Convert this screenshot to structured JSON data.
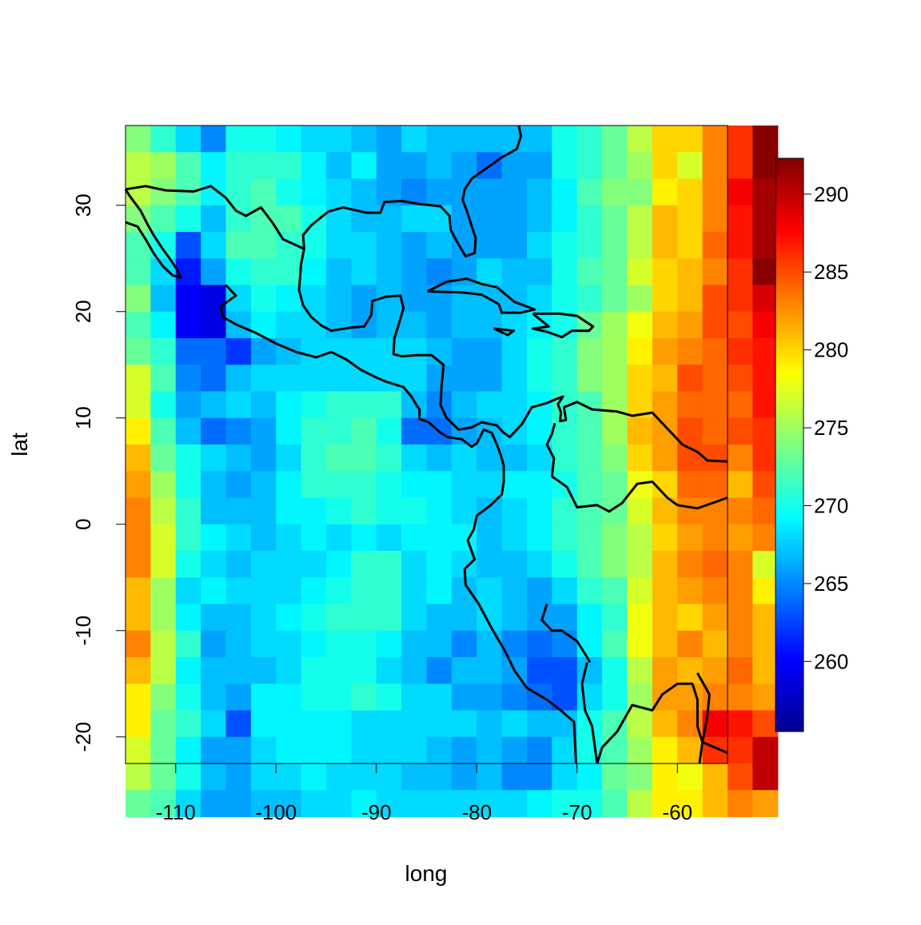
{
  "chart_data": {
    "type": "heatmap",
    "title": "",
    "xlabel": "long",
    "ylabel": "lat",
    "xlim": [
      -115,
      -55
    ],
    "ylim": [
      -22.5,
      37.5
    ],
    "x_ticks": [
      "-110",
      "-100",
      "-90",
      "-80",
      "-70",
      "-60"
    ],
    "y_ticks": [
      "-20",
      "-10",
      "0",
      "10",
      "20",
      "30"
    ],
    "colorbar": {
      "range": [
        255.5,
        292.3
      ],
      "ticks": [
        "260",
        "265",
        "270",
        "275",
        "280",
        "285",
        "290"
      ],
      "palette": [
        "#00008F",
        "#0000FF",
        "#0080FF",
        "#00FFFF",
        "#80FF80",
        "#FFFF00",
        "#FF8000",
        "#FF0000",
        "#800000"
      ]
    },
    "grid": {
      "lon_start": -115,
      "lon_step": 2.5,
      "lat_top": 37.5,
      "lat_step": 2.5,
      "rows": [
        [
          274,
          271,
          268,
          265,
          270,
          270,
          269,
          268,
          268,
          267,
          266,
          268,
          267,
          267,
          267,
          267,
          267,
          270,
          271,
          273,
          276,
          280,
          280,
          283,
          286,
          292
        ],
        [
          276,
          275,
          272,
          269,
          271,
          271,
          271,
          269,
          267,
          269,
          266,
          266,
          267,
          266,
          264,
          266,
          266,
          270,
          271,
          273,
          275,
          280,
          277,
          283,
          286,
          292
        ],
        [
          276,
          274,
          272,
          269,
          271,
          272,
          270,
          269,
          268,
          267,
          266,
          265,
          266,
          266,
          266,
          266,
          267,
          269,
          272,
          274,
          274,
          279,
          280,
          283,
          288,
          291
        ],
        [
          274,
          272,
          270,
          267,
          271,
          272,
          272,
          270,
          268,
          267,
          267,
          268,
          268,
          266,
          266,
          266,
          267,
          269,
          271,
          273,
          276,
          281,
          280,
          283,
          287,
          291
        ],
        [
          272,
          270,
          263,
          268,
          272,
          272,
          271,
          270,
          268,
          268,
          267,
          266,
          267,
          266,
          266,
          266,
          268,
          270,
          271,
          273,
          276,
          281,
          280,
          284,
          287,
          291
        ],
        [
          272,
          268,
          261,
          266,
          270,
          271,
          271,
          269,
          267,
          268,
          267,
          266,
          265,
          266,
          268,
          267,
          267,
          270,
          272,
          273,
          277,
          280,
          281,
          283,
          286,
          292
        ],
        [
          274,
          267,
          260,
          259,
          268,
          270,
          269,
          268,
          267,
          266,
          267,
          266,
          266,
          267,
          267,
          267,
          268,
          270,
          271,
          273,
          275,
          280,
          281,
          285,
          286,
          289
        ],
        [
          272,
          269,
          260,
          259,
          267,
          269,
          268,
          268,
          267,
          266,
          267,
          267,
          266,
          267,
          267,
          268,
          269,
          270,
          273,
          275,
          278,
          281,
          282,
          285,
          285,
          288
        ],
        [
          273,
          271,
          264,
          264,
          262,
          266,
          267,
          268,
          268,
          268,
          268,
          268,
          267,
          266,
          266,
          268,
          270,
          271,
          274,
          275,
          279,
          282,
          283,
          284,
          286,
          287
        ],
        [
          277,
          272,
          265,
          264,
          267,
          268,
          268,
          268,
          268,
          268,
          268,
          268,
          266,
          266,
          266,
          268,
          270,
          271,
          274,
          275,
          280,
          281,
          285,
          284,
          285,
          287
        ],
        [
          277,
          270,
          266,
          267,
          268,
          267,
          269,
          270,
          271,
          271,
          271,
          267,
          265,
          267,
          268,
          268,
          269,
          271,
          272,
          275,
          280,
          282,
          284,
          284,
          284,
          287
        ],
        [
          279,
          272,
          267,
          264,
          265,
          266,
          269,
          271,
          271,
          272,
          270,
          264,
          264,
          266,
          267,
          268,
          269,
          271,
          272,
          275,
          281,
          282,
          285,
          284,
          285,
          286
        ],
        [
          281,
          273,
          270,
          268,
          267,
          266,
          268,
          271,
          272,
          272,
          271,
          268,
          267,
          268,
          267,
          267,
          268,
          271,
          272,
          274,
          280,
          282,
          285,
          285,
          283,
          286
        ],
        [
          282,
          275,
          270,
          267,
          266,
          267,
          269,
          271,
          271,
          271,
          270,
          269,
          269,
          268,
          268,
          269,
          269,
          270,
          272,
          273,
          278,
          280,
          284,
          284,
          281,
          285
        ],
        [
          283,
          276,
          271,
          267,
          267,
          267,
          269,
          269,
          270,
          271,
          270,
          270,
          269,
          268,
          267,
          268,
          269,
          271,
          272,
          273,
          277,
          281,
          283,
          283,
          283,
          284
        ],
        [
          283,
          277,
          271,
          269,
          268,
          267,
          268,
          269,
          268,
          269,
          268,
          269,
          269,
          269,
          267,
          268,
          269,
          271,
          272,
          274,
          276,
          280,
          282,
          283,
          282,
          283
        ],
        [
          283,
          277,
          270,
          268,
          267,
          268,
          268,
          268,
          269,
          271,
          271,
          268,
          269,
          268,
          267,
          267,
          268,
          270,
          272,
          274,
          276,
          281,
          283,
          284,
          283,
          277
        ],
        [
          281,
          275,
          268,
          269,
          268,
          268,
          268,
          269,
          270,
          271,
          271,
          268,
          269,
          267,
          268,
          267,
          266,
          268,
          271,
          272,
          277,
          281,
          282,
          283,
          283,
          279
        ],
        [
          281,
          275,
          269,
          267,
          267,
          268,
          269,
          270,
          271,
          271,
          271,
          268,
          267,
          267,
          268,
          267,
          266,
          266,
          269,
          271,
          278,
          281,
          280,
          282,
          283,
          281
        ],
        [
          283,
          276,
          271,
          266,
          267,
          268,
          268,
          269,
          270,
          270,
          269,
          267,
          267,
          265,
          267,
          265,
          264,
          265,
          269,
          272,
          278,
          281,
          283,
          281,
          283,
          281
        ],
        [
          281,
          276,
          269,
          267,
          267,
          267,
          268,
          270,
          270,
          270,
          268,
          267,
          265,
          267,
          267,
          266,
          263,
          263,
          267,
          270,
          276,
          282,
          281,
          282,
          284,
          281
        ],
        [
          279,
          274,
          270,
          267,
          266,
          269,
          269,
          270,
          270,
          271,
          270,
          268,
          268,
          266,
          266,
          265,
          264,
          263,
          268,
          270,
          275,
          282,
          282,
          283,
          283,
          282
        ],
        [
          279,
          273,
          271,
          268,
          263,
          269,
          269,
          269,
          269,
          268,
          268,
          268,
          268,
          268,
          267,
          268,
          267,
          267,
          270,
          272,
          276,
          281,
          283,
          288,
          287,
          285
        ],
        [
          277,
          273,
          269,
          266,
          266,
          268,
          269,
          269,
          269,
          268,
          268,
          268,
          267,
          266,
          267,
          266,
          265,
          268,
          270,
          272,
          275,
          279,
          281,
          286,
          286,
          290
        ],
        [
          276,
          273,
          270,
          267,
          266,
          268,
          268,
          269,
          268,
          268,
          268,
          267,
          267,
          266,
          267,
          265,
          265,
          268,
          269,
          273,
          274,
          279,
          278,
          281,
          285,
          290
        ],
        [
          273,
          272,
          268,
          266,
          266,
          267,
          267,
          268,
          268,
          269,
          268,
          268,
          268,
          268,
          268,
          268,
          269,
          270,
          270,
          272,
          276,
          279,
          279,
          281,
          283,
          282
        ]
      ]
    }
  }
}
